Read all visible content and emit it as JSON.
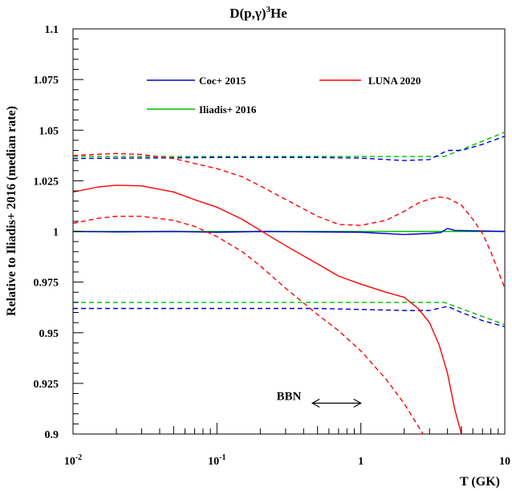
{
  "chart_data": {
    "type": "line",
    "title": "D(p,γ)³He",
    "title_parts": {
      "main": "D(p,γ)",
      "sup": "3",
      "tail": "He"
    },
    "xlabel": "T (GK)",
    "ylabel": "Relative to Iliadis+ 2016 (median rate)",
    "x_scale": "log",
    "xlim": [
      0.01,
      10
    ],
    "ylim": [
      0.9,
      1.1
    ],
    "x_tick_labels": [
      {
        "value": 0.01,
        "base": "10",
        "exp": "-2"
      },
      {
        "value": 0.1,
        "base": "10",
        "exp": "-1"
      },
      {
        "value": 1,
        "label": "1"
      },
      {
        "value": 10,
        "label": "10"
      }
    ],
    "y_ticks": [
      0.9,
      0.925,
      0.95,
      0.975,
      1,
      1.025,
      1.05,
      1.075,
      1.1
    ],
    "y_tick_labels": [
      "0.9",
      "0.925",
      "0.95",
      "0.975",
      "1",
      "1.025",
      "1.05",
      "1.075",
      "1.1"
    ],
    "legend": [
      {
        "name": "Coc+ 2015",
        "color": "#0000cc"
      },
      {
        "name": "LUNA 2020",
        "color": "#ff0000"
      },
      {
        "name": "Iliadis+ 2016",
        "color": "#00bb00"
      }
    ],
    "annotation": {
      "text": "BBN",
      "arrow_x": [
        0.46,
        1.0
      ],
      "y": 0.92
    },
    "series": [
      {
        "name": "Iliadis+ 2016",
        "color": "#00bb00",
        "style": "solid",
        "x": [
          0.01,
          10
        ],
        "y": [
          1.0,
          1.0
        ]
      },
      {
        "name": "Iliadis+ 2016",
        "color": "#00bb00",
        "style": "dashed",
        "x": [
          0.01,
          0.1,
          1,
          3.8,
          10
        ],
        "y": [
          1.037,
          1.037,
          1.037,
          1.037,
          1.049
        ]
      },
      {
        "name": "Iliadis+ 2016",
        "color": "#00bb00",
        "style": "dashed",
        "x": [
          0.01,
          0.1,
          1,
          3.8,
          10
        ],
        "y": [
          0.965,
          0.965,
          0.965,
          0.965,
          0.954
        ]
      },
      {
        "name": "Coc+ 2015",
        "color": "#0000cc",
        "style": "solid",
        "x": [
          0.01,
          0.02,
          0.05,
          0.1,
          0.2,
          0.5,
          1,
          2,
          3,
          3.6,
          4,
          4.5,
          10
        ],
        "y": [
          1.0,
          0.9998,
          1.0,
          0.9996,
          1.0,
          0.9998,
          0.9996,
          0.9985,
          0.999,
          0.9995,
          1.0015,
          1.0005,
          1.0
        ]
      },
      {
        "name": "Coc+ 2015",
        "color": "#0000cc",
        "style": "dashed",
        "x": [
          0.01,
          0.1,
          0.5,
          1,
          2,
          3,
          4,
          5,
          7,
          10
        ],
        "y": [
          1.036,
          1.0365,
          1.0365,
          1.0362,
          1.035,
          1.0355,
          1.04,
          1.04,
          1.043,
          1.047
        ]
      },
      {
        "name": "Coc+ 2015",
        "color": "#0000cc",
        "style": "dashed",
        "x": [
          0.01,
          0.1,
          0.5,
          1,
          2,
          3,
          4,
          5,
          7,
          10
        ],
        "y": [
          0.962,
          0.962,
          0.962,
          0.9615,
          0.961,
          0.961,
          0.963,
          0.96,
          0.956,
          0.953
        ]
      },
      {
        "name": "LUNA 2020",
        "color": "#ff0000",
        "style": "solid",
        "x": [
          0.01,
          0.015,
          0.02,
          0.03,
          0.05,
          0.07,
          0.1,
          0.15,
          0.2,
          0.3,
          0.5,
          0.7,
          1,
          1.5,
          2,
          2.5,
          3,
          3.5,
          4,
          4.5,
          5,
          5.5
        ],
        "y": [
          1.0195,
          1.022,
          1.0228,
          1.0225,
          1.0195,
          1.0157,
          1.012,
          1.006,
          1.0005,
          0.993,
          0.984,
          0.978,
          0.974,
          0.97,
          0.9675,
          0.962,
          0.955,
          0.944,
          0.93,
          0.912,
          0.9,
          0.89
        ]
      },
      {
        "name": "LUNA 2020",
        "color": "#ff0000",
        "style": "dashed",
        "x": [
          0.01,
          0.02,
          0.03,
          0.05,
          0.1,
          0.15,
          0.2,
          0.3,
          0.5,
          0.7,
          1,
          1.5,
          2,
          2.5,
          3,
          3.5,
          4,
          5,
          6,
          7,
          8,
          10
        ],
        "y": [
          1.0375,
          1.0385,
          1.038,
          1.036,
          1.031,
          1.027,
          1.0225,
          1.0158,
          1.0075,
          1.0035,
          1.003,
          1.0055,
          1.01,
          1.014,
          1.016,
          1.017,
          1.0165,
          1.013,
          1.006,
          0.999,
          0.99,
          0.972
        ]
      },
      {
        "name": "LUNA 2020",
        "color": "#ff0000",
        "style": "dashed",
        "x": [
          0.01,
          0.015,
          0.02,
          0.03,
          0.05,
          0.07,
          0.1,
          0.15,
          0.2,
          0.3,
          0.5,
          0.7,
          1,
          1.5,
          2,
          2.5,
          3
        ],
        "y": [
          1.004,
          1.0065,
          1.0075,
          1.0075,
          1.0055,
          1.0025,
          0.9975,
          0.99,
          0.983,
          0.972,
          0.959,
          0.951,
          0.941,
          0.927,
          0.915,
          0.904,
          0.895
        ]
      }
    ]
  }
}
